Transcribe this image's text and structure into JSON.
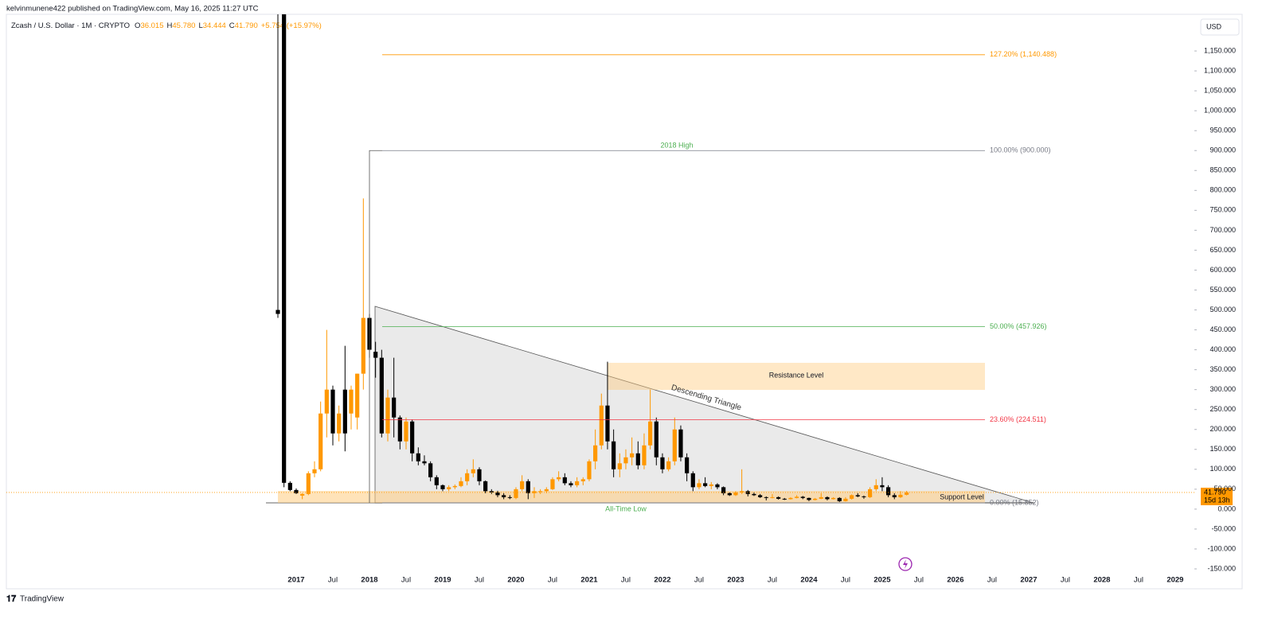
{
  "chart_data": {
    "type": "candlestick",
    "published": "kelvinmunene422 published on TradingView.com, May 16, 2025 11:27 UTC",
    "symbol": "Zcash / U.S. Dollar · 1M · CRYPTO",
    "ohlc_legend": [
      {
        "key": "O",
        "value": "36.015"
      },
      {
        "key": "H",
        "value": "45.780"
      },
      {
        "key": "L",
        "value": "34.444"
      },
      {
        "key": "C",
        "value": "41.790"
      }
    ],
    "change": "+5.754 (+15.97%)",
    "currency": "USD",
    "brand": "TradingView",
    "up_color": "#ff9800",
    "down_color": "#000000",
    "ohlc": [
      [
        500,
        5000,
        480,
        490
      ],
      [
        1300,
        1300,
        55,
        66
      ],
      [
        66,
        70,
        45,
        48
      ],
      [
        48,
        52,
        38,
        40
      ],
      [
        34,
        40,
        25,
        38
      ],
      [
        38,
        95,
        35,
        90
      ],
      [
        90,
        120,
        80,
        100
      ],
      [
        100,
        270,
        95,
        240
      ],
      [
        240,
        450,
        180,
        300
      ],
      [
        300,
        310,
        160,
        190
      ],
      [
        190,
        260,
        170,
        240
      ],
      [
        300,
        410,
        145,
        190
      ],
      [
        240,
        310,
        200,
        300
      ],
      [
        230,
        340,
        200,
        340
      ],
      [
        340,
        780,
        300,
        480
      ],
      [
        480,
        490,
        380,
        400
      ],
      [
        395,
        420,
        330,
        380
      ],
      [
        380,
        400,
        180,
        190
      ],
      [
        190,
        300,
        170,
        280
      ],
      [
        280,
        380,
        180,
        230
      ],
      [
        230,
        235,
        150,
        170
      ],
      [
        170,
        230,
        150,
        220
      ],
      [
        220,
        225,
        120,
        140
      ],
      [
        140,
        155,
        110,
        120
      ],
      [
        120,
        135,
        110,
        115
      ],
      [
        115,
        120,
        70,
        80
      ],
      [
        80,
        85,
        50,
        60
      ],
      [
        60,
        62,
        45,
        50
      ],
      [
        50,
        60,
        45,
        55
      ],
      [
        55,
        62,
        50,
        58
      ],
      [
        58,
        80,
        55,
        70
      ],
      [
        70,
        100,
        60,
        90
      ],
      [
        90,
        125,
        80,
        100
      ],
      [
        100,
        105,
        60,
        70
      ],
      [
        70,
        72,
        40,
        45
      ],
      [
        45,
        50,
        38,
        42
      ],
      [
        42,
        46,
        30,
        35
      ],
      [
        35,
        40,
        25,
        30
      ],
      [
        30,
        35,
        25,
        28
      ],
      [
        28,
        55,
        25,
        50
      ],
      [
        50,
        85,
        45,
        70
      ],
      [
        70,
        75,
        25,
        40
      ],
      [
        40,
        55,
        28,
        45
      ],
      [
        45,
        50,
        38,
        45
      ],
      [
        45,
        55,
        40,
        50
      ],
      [
        50,
        80,
        48,
        75
      ],
      [
        75,
        95,
        70,
        80
      ],
      [
        80,
        90,
        60,
        65
      ],
      [
        65,
        70,
        55,
        60
      ],
      [
        60,
        80,
        55,
        70
      ],
      [
        70,
        80,
        60,
        75
      ],
      [
        75,
        125,
        70,
        120
      ],
      [
        120,
        200,
        100,
        160
      ],
      [
        160,
        290,
        150,
        260
      ],
      [
        260,
        370,
        150,
        170
      ],
      [
        170,
        200,
        80,
        100
      ],
      [
        100,
        140,
        80,
        115
      ],
      [
        115,
        150,
        100,
        130
      ],
      [
        130,
        180,
        110,
        140
      ],
      [
        140,
        170,
        100,
        110
      ],
      [
        110,
        190,
        100,
        160
      ],
      [
        160,
        300,
        150,
        220
      ],
      [
        220,
        230,
        110,
        130
      ],
      [
        130,
        140,
        90,
        100
      ],
      [
        100,
        130,
        95,
        120
      ],
      [
        120,
        230,
        110,
        200
      ],
      [
        200,
        210,
        120,
        130
      ],
      [
        130,
        140,
        70,
        90
      ],
      [
        90,
        95,
        45,
        55
      ],
      [
        55,
        75,
        50,
        65
      ],
      [
        65,
        80,
        55,
        58
      ],
      [
        58,
        68,
        50,
        62
      ],
      [
        62,
        65,
        50,
        55
      ],
      [
        55,
        57,
        35,
        40
      ],
      [
        40,
        42,
        33,
        35
      ],
      [
        35,
        45,
        33,
        42
      ],
      [
        42,
        100,
        38,
        45
      ],
      [
        45,
        48,
        32,
        38
      ],
      [
        38,
        42,
        33,
        35
      ],
      [
        35,
        38,
        28,
        30
      ],
      [
        30,
        32,
        22,
        28
      ],
      [
        28,
        38,
        27,
        30
      ],
      [
        30,
        32,
        24,
        26
      ],
      [
        26,
        28,
        23,
        25
      ],
      [
        25,
        30,
        24,
        28
      ],
      [
        28,
        35,
        27,
        31
      ],
      [
        31,
        33,
        25,
        28
      ],
      [
        28,
        29,
        20,
        23
      ],
      [
        23,
        28,
        22,
        26
      ],
      [
        26,
        40,
        25,
        30
      ],
      [
        30,
        32,
        22,
        25
      ],
      [
        25,
        30,
        24,
        28
      ],
      [
        28,
        30,
        18,
        20
      ],
      [
        20,
        30,
        19,
        26
      ],
      [
        26,
        37,
        24,
        35
      ],
      [
        35,
        40,
        30,
        32
      ],
      [
        32,
        34,
        26,
        30
      ],
      [
        30,
        55,
        28,
        50
      ],
      [
        50,
        75,
        45,
        60
      ],
      [
        60,
        80,
        45,
        55
      ],
      [
        55,
        60,
        30,
        35
      ],
      [
        35,
        40,
        25,
        30
      ],
      [
        30,
        45,
        28,
        36
      ],
      [
        36.015,
        45.78,
        34.444,
        41.79
      ]
    ],
    "xticks": [
      "2017",
      "Jul",
      "2018",
      "Jul",
      "2019",
      "Jul",
      "2020",
      "Jul",
      "2021",
      "Jul",
      "2022",
      "Jul",
      "2023",
      "Jul",
      "2024",
      "Jul",
      "2025",
      "Jul",
      "2026",
      "Jul",
      "2027",
      "Jul",
      "2028",
      "Jul",
      "2029"
    ],
    "ylim": [
      -160,
      1240
    ],
    "yticks": [
      {
        "value": -150,
        "label": "-150.000"
      },
      {
        "value": -100,
        "label": "-100.000"
      },
      {
        "value": -50,
        "label": "-50.000"
      },
      {
        "value": 0,
        "label": "0.000"
      },
      {
        "value": 50,
        "label": "50.000"
      },
      {
        "value": 100,
        "label": "100.000"
      },
      {
        "value": 150,
        "label": "150.000"
      },
      {
        "value": 200,
        "label": "200.000"
      },
      {
        "value": 250,
        "label": "250.000"
      },
      {
        "value": 300,
        "label": "300.000"
      },
      {
        "value": 350,
        "label": "350.000"
      },
      {
        "value": 400,
        "label": "400.000"
      },
      {
        "value": 450,
        "label": "450.000"
      },
      {
        "value": 500,
        "label": "500.000"
      },
      {
        "value": 550,
        "label": "550.000"
      },
      {
        "value": 600,
        "label": "600.000"
      },
      {
        "value": 650,
        "label": "650.000"
      },
      {
        "value": 700,
        "label": "700.000"
      },
      {
        "value": 750,
        "label": "750.000"
      },
      {
        "value": 800,
        "label": "800.000"
      },
      {
        "value": 850,
        "label": "850.000"
      },
      {
        "value": 900,
        "label": "900.000"
      },
      {
        "value": 950,
        "label": "950.000"
      },
      {
        "value": 1000,
        "label": "1,000.000"
      },
      {
        "value": 1050,
        "label": "1,050.000"
      },
      {
        "value": 1100,
        "label": "1,100.000"
      },
      {
        "value": 1150,
        "label": "1,150.000"
      }
    ],
    "fib_levels": [
      {
        "label": "127.20% (1,140.488)",
        "value": 1140.488,
        "color": "#ff9800"
      },
      {
        "label": "100.00% (900.000)",
        "value": 900,
        "color": "#787b86"
      },
      {
        "label": "50.00% (457.926)",
        "value": 457.926,
        "color": "#4caf50"
      },
      {
        "label": "23.60% (224.511)",
        "value": 224.511,
        "color": "#f23645"
      },
      {
        "label": "0.00% (15.852)",
        "value": 15.852,
        "color": "#787b86"
      }
    ],
    "annotations": {
      "high": "2018 High",
      "low": "All-Time Low",
      "triangle": "Descending Triangle",
      "resistance": "Resistance Level",
      "support": "Support Level"
    },
    "last_price": {
      "value": 41.79,
      "label": "41.790"
    },
    "countdown": "15d 13h"
  }
}
